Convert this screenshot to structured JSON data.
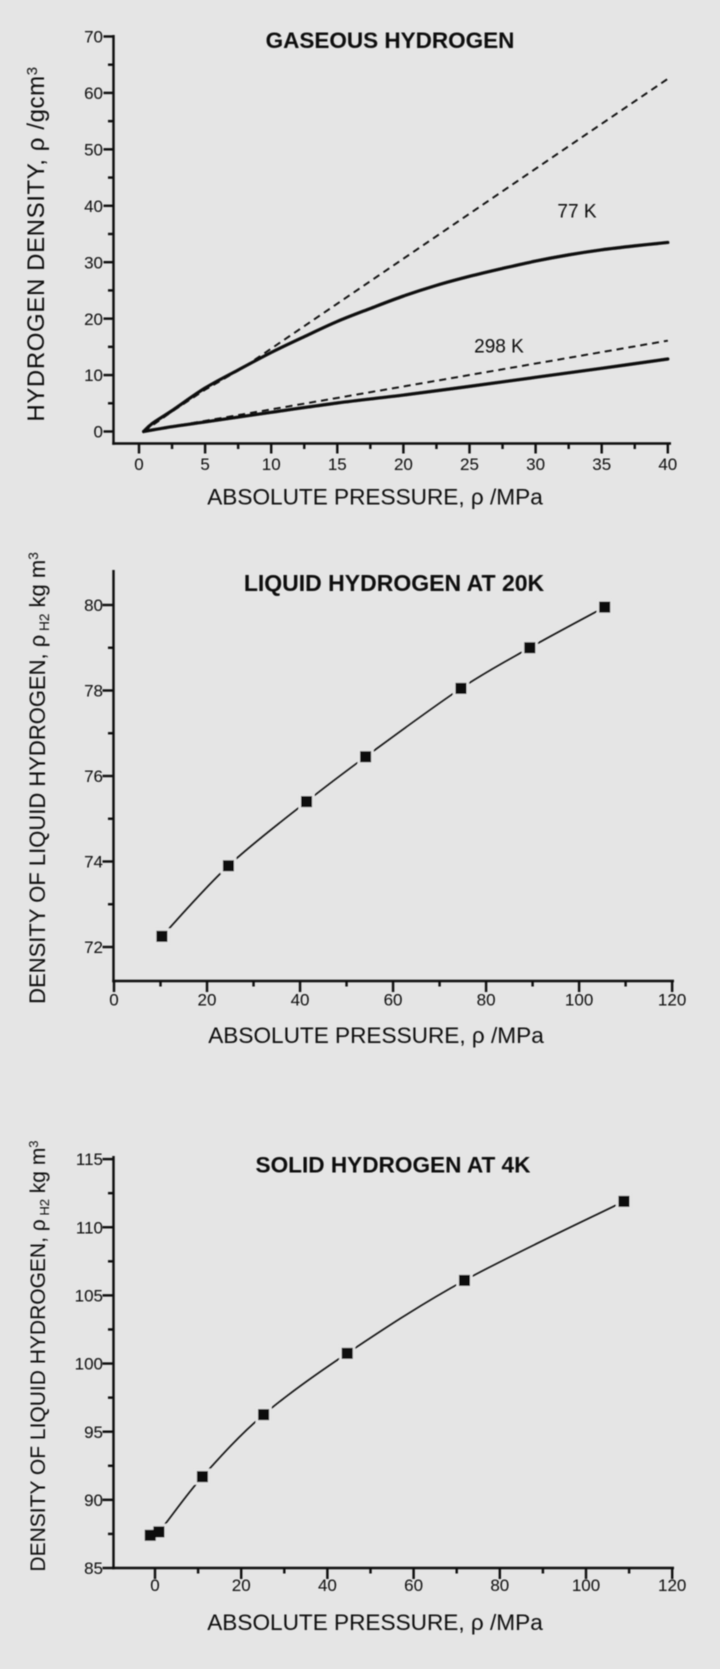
{
  "page": {
    "background_color": "#e5e5e5",
    "ink_color": "#0a0a0a",
    "figure_description": "Hydrogen density versus absolute pressure: gaseous, liquid and solid hydrogen"
  },
  "chart_data": [
    {
      "id": "gaseous",
      "type": "line",
      "title": "GASEOUS HYDROGEN",
      "xlabel": "ABSOLUTE PRESSURE, ρ /MPa",
      "ylabel_parts": [
        {
          "t": "HYDROGEN DENSITY, "
        },
        {
          "t": "ρ"
        },
        {
          "t": " /gcm"
        },
        {
          "t": "3",
          "style": "sup"
        }
      ],
      "xlim": [
        0,
        40
      ],
      "ylim": [
        0,
        70
      ],
      "xticks": {
        "major": [
          0,
          5,
          10,
          15,
          20,
          25,
          30,
          35,
          40
        ],
        "minor": [
          2.5,
          7.5,
          12.5,
          17.5,
          22.5,
          27.5,
          32.5,
          37.5
        ]
      },
      "yticks": {
        "major": [
          0,
          10,
          20,
          30,
          40,
          50,
          60,
          70
        ],
        "minor": [
          5,
          15,
          25,
          35,
          45,
          55,
          65
        ]
      },
      "grid": false,
      "legend": "inline annotations",
      "series": [
        {
          "name": "77 K ideal gas (dashed)",
          "style": "dashed",
          "x": [
            0.35,
            2.5,
            5,
            7.5,
            8.5,
            40
          ],
          "y": [
            0,
            3.55,
            7.4,
            10.8,
            12.3,
            62.5
          ]
        },
        {
          "name": "298 K ideal gas (dashed)",
          "style": "dashed",
          "x": [
            0.35,
            40
          ],
          "y": [
            0,
            16.1
          ]
        },
        {
          "name": "77 K",
          "style": "solid",
          "smooth": true,
          "x": [
            0.35,
            1,
            2.5,
            5,
            7.5,
            10,
            12.5,
            15,
            17.5,
            20,
            22.5,
            25,
            27.5,
            30,
            32.5,
            35,
            37.5,
            40
          ],
          "y": [
            0,
            1.4,
            3.7,
            7.7,
            10.9,
            14,
            16.8,
            19.5,
            21.8,
            24,
            25.9,
            27.5,
            28.9,
            30.2,
            31.3,
            32.2,
            32.9,
            33.5
          ]
        },
        {
          "name": "298 K",
          "style": "solid",
          "smooth": true,
          "x": [
            0.35,
            2.5,
            5,
            10,
            15,
            20,
            25,
            30,
            35,
            40
          ],
          "y": [
            0,
            0.85,
            1.7,
            3.4,
            5.05,
            6.45,
            8.0,
            9.6,
            11.2,
            12.85
          ]
        }
      ],
      "annotations": [
        {
          "text": "77 K",
          "x": 33.13,
          "y": 39.07
        },
        {
          "text": "298 K",
          "x": 27.23,
          "y": 15.15
        }
      ]
    },
    {
      "id": "liquid",
      "type": "scatter-line",
      "title": "LIQUID HYDROGEN AT 20K",
      "xlabel": "ABSOLUTE PRESSURE, ρ /MPa",
      "ylabel_parts": [
        {
          "t": "DENSITY OF LIQUID HYDROGEN,  "
        },
        {
          "t": "ρ"
        },
        {
          "t": " H2",
          "style": "sub"
        },
        {
          "t": " kg m"
        },
        {
          "t": "3",
          "style": "sup"
        }
      ],
      "xlim": [
        0,
        120
      ],
      "ylim": [
        72,
        80
      ],
      "xticks": {
        "major": [
          0,
          20,
          40,
          60,
          80,
          100,
          120
        ],
        "minor": [
          10,
          30,
          50,
          70,
          90,
          110
        ]
      },
      "yticks": {
        "major": [
          72,
          74,
          76,
          78,
          80
        ],
        "minor": [
          73,
          75,
          77,
          79
        ]
      },
      "grid": false,
      "series": [
        {
          "name": "liquid hydrogen density at 20 K",
          "style": "line-markers",
          "marker": "square",
          "smooth": true,
          "x": [
            10.3,
            24.6,
            41.4,
            54.1,
            74.6,
            89.4,
            105.5
          ],
          "y": [
            72.25,
            73.9,
            75.4,
            76.45,
            78.05,
            79.0,
            79.95
          ]
        }
      ],
      "annotations": []
    },
    {
      "id": "solid",
      "type": "scatter-line",
      "title": "SOLID HYDROGEN AT 4K",
      "xlabel": "ABSOLUTE PRESSURE, ρ /MPa",
      "ylabel_parts": [
        {
          "t": "DENSITY OF LIQUID HYDROGEN,  "
        },
        {
          "t": "ρ"
        },
        {
          "t": " H2",
          "style": "sub"
        },
        {
          "t": " kg m"
        },
        {
          "t": "3",
          "style": "sup"
        }
      ],
      "xlim": [
        0,
        120
      ],
      "ylim": [
        85,
        115
      ],
      "xticks": {
        "major": [
          0,
          20,
          40,
          60,
          80,
          100,
          120
        ],
        "minor": [
          10,
          30,
          50,
          70,
          90,
          110
        ]
      },
      "yticks": {
        "major": [
          85,
          90,
          95,
          100,
          105,
          110,
          115
        ],
        "minor": [
          87.5,
          92.5,
          97.5,
          102.5,
          107.5,
          112.5
        ]
      },
      "grid": false,
      "series": [
        {
          "name": "solid hydrogen density at 4 K",
          "style": "line-markers",
          "marker": "square",
          "smooth": true,
          "x": [
            -1.1,
            0.9,
            11,
            25.2,
            44.6,
            71.8,
            108.8
          ],
          "y": [
            87.4,
            87.65,
            91.7,
            96.25,
            100.75,
            106.1,
            111.9
          ]
        }
      ],
      "annotations": []
    }
  ]
}
